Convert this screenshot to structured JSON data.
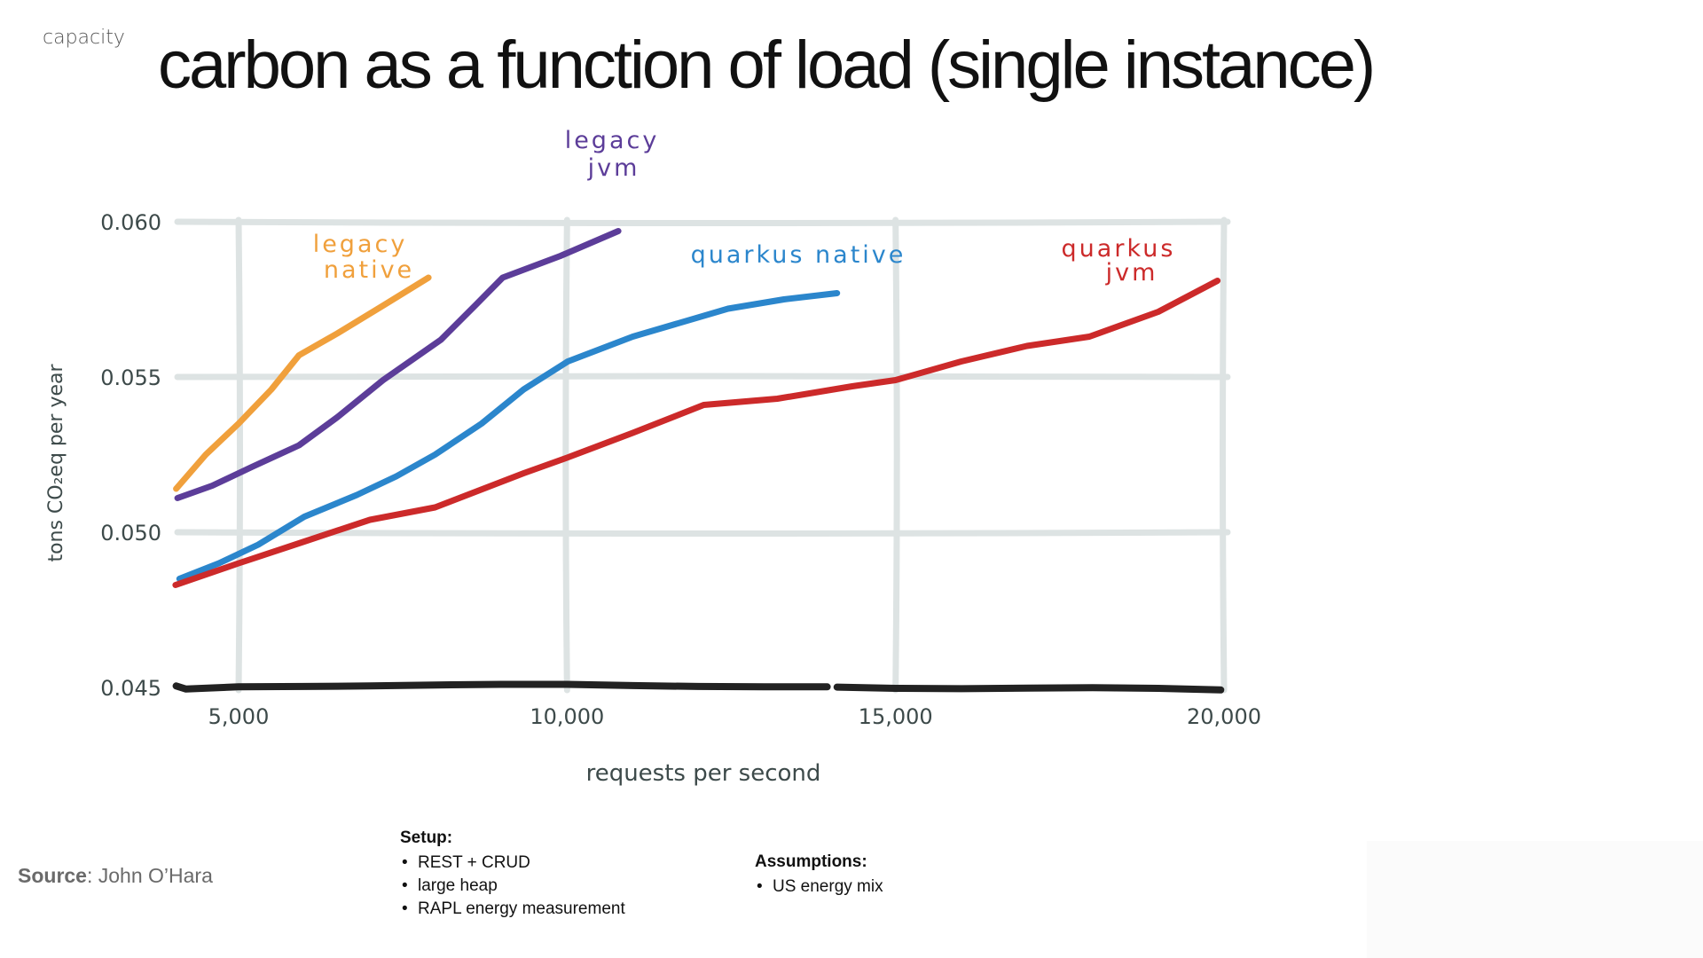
{
  "header": {
    "section_label": "capacity",
    "title": "carbon as a function of load (single instance)"
  },
  "chart_data": {
    "type": "line",
    "title": "carbon as a function of load (single instance)",
    "xlabel": "requests per second",
    "ylabel": "tons CO₂eq per year",
    "xlim": [
      4000,
      20000
    ],
    "ylim": [
      0.045,
      0.06
    ],
    "x_ticks": [
      5000,
      10000,
      15000,
      20000
    ],
    "x_tick_labels": [
      "5,000",
      "10,000",
      "15,000",
      "20,000"
    ],
    "y_ticks": [
      0.045,
      0.05,
      0.055,
      0.06
    ],
    "y_tick_labels": [
      "0.045",
      "0.050",
      "0.055",
      "0.060"
    ],
    "grid": true,
    "legend": "inline labels near line ends",
    "series": [
      {
        "name": "legacy native",
        "label_lines": [
          "legacy",
          "native"
        ],
        "color": "#f0a03c",
        "x": [
          4050,
          4500,
          5000,
          5500,
          5920,
          6500,
          7200,
          7890
        ],
        "y": [
          0.0514,
          0.0525,
          0.0535,
          0.0546,
          0.0557,
          0.0564,
          0.0573,
          0.0582
        ]
      },
      {
        "name": "legacy jvm",
        "label_lines": [
          "legacy",
          "jvm"
        ],
        "color": "#5c3d99",
        "x": [
          4070,
          4600,
          5200,
          5920,
          6500,
          7200,
          8080,
          8600,
          9020,
          9900,
          10780
        ],
        "y": [
          0.0511,
          0.0515,
          0.0521,
          0.0528,
          0.0537,
          0.0549,
          0.0562,
          0.0573,
          0.0582,
          0.0589,
          0.0597
        ]
      },
      {
        "name": "quarkus native",
        "label_lines": [
          "quarkus native"
        ],
        "color": "#2b86cc",
        "x": [
          4100,
          4700,
          5300,
          6000,
          6800,
          7400,
          7990,
          8700,
          9340,
          10010,
          11000,
          12450,
          13300,
          14110
        ],
        "y": [
          0.0485,
          0.049,
          0.0496,
          0.0505,
          0.0512,
          0.0518,
          0.0525,
          0.0535,
          0.0546,
          0.0555,
          0.0563,
          0.0572,
          0.0575,
          0.0577
        ]
      },
      {
        "name": "quarkus jvm",
        "label_lines": [
          "quarkus",
          "jvm"
        ],
        "color": "#cc2a2a",
        "x": [
          4040,
          5000,
          6000,
          7000,
          7990,
          9340,
          10000,
          11000,
          12080,
          13200,
          14340,
          15000,
          16000,
          17000,
          17950,
          19000,
          19900
        ],
        "y": [
          0.0483,
          0.049,
          0.0497,
          0.0504,
          0.0508,
          0.0519,
          0.0524,
          0.0532,
          0.0541,
          0.0543,
          0.0547,
          0.0549,
          0.0555,
          0.056,
          0.0563,
          0.0571,
          0.0581
        ]
      },
      {
        "name": "baseline",
        "label_lines": [],
        "color": "#222222",
        "x": [
          4050,
          4200,
          5000,
          6000,
          7000,
          8000,
          9000,
          10000,
          11000,
          12000,
          13000,
          13960,
          14110,
          15000,
          16000,
          17000,
          18000,
          19000,
          19950
        ],
        "y": [
          0.04505,
          0.04495,
          0.04502,
          0.04503,
          0.04505,
          0.04508,
          0.0451,
          0.0451,
          0.04506,
          0.04503,
          0.04502,
          0.04502,
          0.04501,
          0.04497,
          0.04496,
          0.04498,
          0.04499,
          0.04497,
          0.04492
        ]
      }
    ]
  },
  "footer": {
    "source_label": "Source",
    "source_value": ": John O’Hara",
    "setup": {
      "heading": "Setup:",
      "items": [
        "REST + CRUD",
        "large heap",
        "RAPL energy measurement"
      ]
    },
    "assumptions": {
      "heading": "Assumptions:",
      "items": [
        "US energy mix"
      ]
    }
  }
}
